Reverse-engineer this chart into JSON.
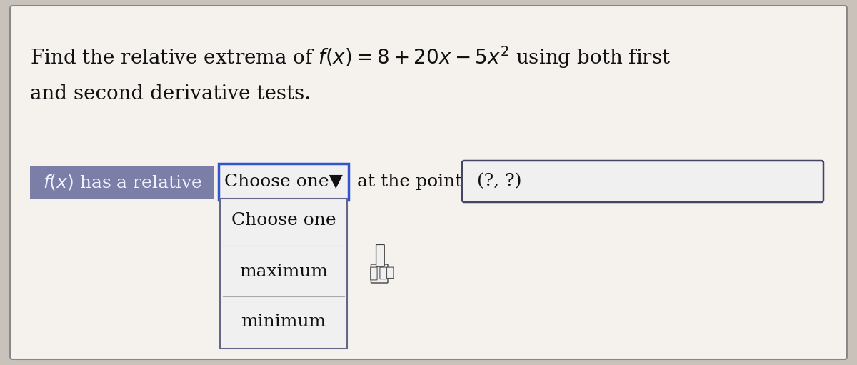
{
  "background_color": "#c8c2ba",
  "outer_box_facecolor": "#f5f2ee",
  "outer_box_edge": "#888888",
  "title_line1": "Find the relative extrema of $f(x) = 8 + 20x - 5x^2$ using both first",
  "title_line2": "and second derivative tests.",
  "title_fontsize": 20,
  "title_color": "#111111",
  "label_text": "$f(x)$ has a relative",
  "label_bg": "#7b7fa8",
  "label_fontsize": 18,
  "label_text_color": "#f0f0ff",
  "dropdown_text": "Choose one▼",
  "dropdown_border": "#3355cc",
  "dropdown_bg": "#f0f0f0",
  "dropdown_fontsize": 18,
  "dropdown_color": "#111111",
  "at_point_text": "at the point",
  "at_point_fontsize": 18,
  "point_text": "(?, ?)",
  "point_border": "#444466",
  "point_bg": "#f0f0f0",
  "point_fontsize": 18,
  "menu_bg": "#f0f0f0",
  "menu_border": "#666688",
  "menu_items": [
    "Choose one",
    "maximum",
    "minimum"
  ],
  "menu_fontsize": 18,
  "menu_color": "#111111",
  "fig_width": 12.0,
  "fig_height": 5.11
}
